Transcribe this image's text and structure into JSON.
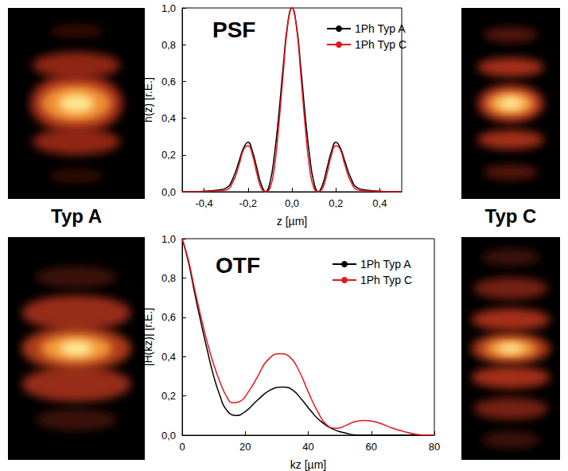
{
  "chart_data": [
    {
      "type": "line",
      "title": "PSF",
      "xlabel": "z [µm]",
      "ylabel": "h(z) [r.E.]",
      "xlim": [
        -0.5,
        0.5
      ],
      "xticks": [
        {
          "value": -0.4,
          "label": "-0,4"
        },
        {
          "value": -0.2,
          "label": "-0,2"
        },
        {
          "value": 0,
          "label": "0,0"
        },
        {
          "value": 0.2,
          "label": "0,2"
        },
        {
          "value": 0.4,
          "label": "0,4"
        }
      ],
      "ylim": [
        0,
        1
      ],
      "yticks": [
        {
          "value": 0,
          "label": "0,0"
        },
        {
          "value": 0.2,
          "label": "0,2"
        },
        {
          "value": 0.4,
          "label": "0,4"
        },
        {
          "value": 0.6,
          "label": "0,6"
        },
        {
          "value": 0.8,
          "label": "0,8"
        },
        {
          "value": 1,
          "label": "1,0"
        }
      ],
      "grid": false,
      "legend": "upper right",
      "series": [
        {
          "name": "1Ph Typ A",
          "color": "#000000",
          "x": [
            -0.5,
            -0.45,
            -0.4,
            -0.35,
            -0.3,
            -0.27,
            -0.24,
            -0.22,
            -0.2,
            -0.18,
            -0.16,
            -0.14,
            -0.12,
            -0.1,
            -0.08,
            -0.06,
            -0.04,
            -0.02,
            0,
            0.02,
            0.04,
            0.06,
            0.08,
            0.1,
            0.12,
            0.14,
            0.16,
            0.18,
            0.2,
            0.22,
            0.24,
            0.27,
            0.3,
            0.35,
            0.4,
            0.45,
            0.5
          ],
          "values": [
            0,
            0,
            0.003,
            0.008,
            0.02,
            0.07,
            0.17,
            0.24,
            0.27,
            0.22,
            0.13,
            0.04,
            0.0,
            0.05,
            0.2,
            0.42,
            0.68,
            0.91,
            1.0,
            0.91,
            0.68,
            0.42,
            0.2,
            0.05,
            0.0,
            0.04,
            0.13,
            0.22,
            0.27,
            0.24,
            0.17,
            0.07,
            0.02,
            0.008,
            0.003,
            0,
            0
          ]
        },
        {
          "name": "1Ph Typ C",
          "color": "#e8141c",
          "x": [
            -0.5,
            -0.45,
            -0.4,
            -0.35,
            -0.3,
            -0.27,
            -0.24,
            -0.22,
            -0.2,
            -0.18,
            -0.16,
            -0.14,
            -0.12,
            -0.1,
            -0.08,
            -0.06,
            -0.04,
            -0.02,
            0,
            0.02,
            0.04,
            0.06,
            0.08,
            0.1,
            0.12,
            0.14,
            0.16,
            0.18,
            0.2,
            0.22,
            0.24,
            0.27,
            0.3,
            0.35,
            0.4,
            0.45,
            0.5
          ],
          "values": [
            0,
            0,
            0.002,
            0.004,
            0.01,
            0.05,
            0.15,
            0.23,
            0.25,
            0.2,
            0.1,
            0.02,
            0.0,
            0.02,
            0.13,
            0.36,
            0.64,
            0.9,
            1.0,
            0.9,
            0.64,
            0.36,
            0.13,
            0.02,
            0.0,
            0.02,
            0.1,
            0.2,
            0.25,
            0.23,
            0.15,
            0.05,
            0.01,
            0.004,
            0.002,
            0,
            0
          ]
        }
      ]
    },
    {
      "type": "line",
      "title": "OTF",
      "xlabel": "kz [µm]",
      "ylabel": "|H(kz)| [r.E.]",
      "xlim": [
        0,
        80
      ],
      "xticks": [
        0,
        20,
        40,
        60,
        80
      ],
      "ylim": [
        0,
        1
      ],
      "yticks": [
        {
          "value": 0,
          "label": "0,0"
        },
        {
          "value": 0.2,
          "label": "0,2"
        },
        {
          "value": 0.4,
          "label": "0,4"
        },
        {
          "value": 0.6,
          "label": "0,6"
        },
        {
          "value": 0.8,
          "label": "0,8"
        },
        {
          "value": 1,
          "label": "1,0"
        }
      ],
      "grid": false,
      "legend": "upper right",
      "series": [
        {
          "name": "1Ph Typ A",
          "color": "#000000",
          "x": [
            0,
            2,
            4,
            6,
            8,
            10,
            12,
            14,
            17,
            20,
            24,
            28,
            32,
            35,
            38,
            41,
            44,
            48,
            52,
            56,
            60,
            70,
            80
          ],
          "values": [
            1.0,
            0.88,
            0.72,
            0.57,
            0.43,
            0.3,
            0.2,
            0.13,
            0.1,
            0.12,
            0.18,
            0.23,
            0.245,
            0.23,
            0.18,
            0.12,
            0.07,
            0.03,
            0.01,
            0.0,
            0,
            0,
            0
          ]
        },
        {
          "name": "1Ph Typ C",
          "color": "#e8141c",
          "x": [
            0,
            2,
            4,
            6,
            8,
            10,
            12,
            14,
            16,
            18,
            21,
            24,
            27,
            31,
            34,
            37,
            40,
            43,
            46,
            49,
            52,
            55,
            58,
            62,
            66,
            70,
            74,
            78,
            80
          ],
          "values": [
            1.0,
            0.89,
            0.74,
            0.6,
            0.47,
            0.36,
            0.27,
            0.2,
            0.165,
            0.17,
            0.22,
            0.3,
            0.38,
            0.415,
            0.4,
            0.33,
            0.22,
            0.12,
            0.05,
            0.035,
            0.05,
            0.07,
            0.075,
            0.065,
            0.04,
            0.02,
            0.005,
            0,
            0
          ]
        }
      ]
    }
  ],
  "image_labels": [
    "Typ A",
    "Typ C"
  ]
}
